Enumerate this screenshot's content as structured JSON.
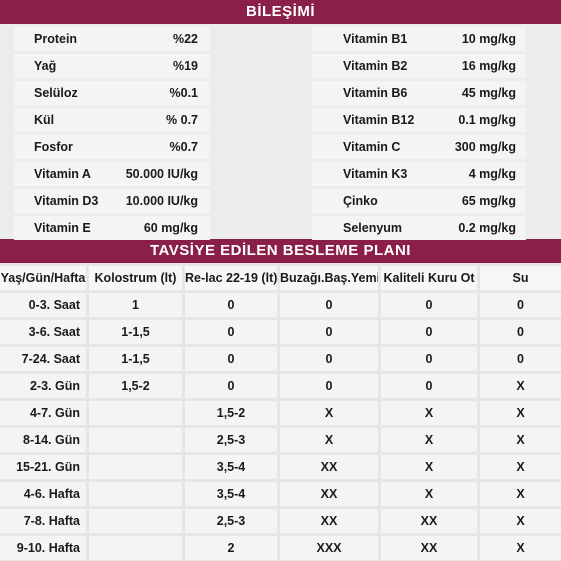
{
  "composition": {
    "title": "BİLEŞİMİ",
    "left": [
      {
        "name": "Protein",
        "value": "%22"
      },
      {
        "name": "Yağ",
        "value": "%19"
      },
      {
        "name": "Selüloz",
        "value": "%0.1"
      },
      {
        "name": "Kül",
        "value": "% 0.7"
      },
      {
        "name": "Fosfor",
        "value": "%0.7"
      },
      {
        "name": "Vitamin A",
        "value": "50.000 IU/kg"
      },
      {
        "name": "Vitamin D3",
        "value": "10.000 IU/kg"
      },
      {
        "name": "Vitamin E",
        "value": "60 mg/kg"
      }
    ],
    "right": [
      {
        "name": "Vitamin B1",
        "value": "10 mg/kg"
      },
      {
        "name": "Vitamin B2",
        "value": "16 mg/kg"
      },
      {
        "name": "Vitamin B6",
        "value": "45 mg/kg"
      },
      {
        "name": "Vitamin B12",
        "value": "0.1 mg/kg"
      },
      {
        "name": "Vitamin C",
        "value": "300 mg/kg"
      },
      {
        "name": "Vitamin K3",
        "value": "4 mg/kg"
      },
      {
        "name": "Çinko",
        "value": "65 mg/kg"
      },
      {
        "name": "Selenyum",
        "value": "0.2 mg/kg"
      }
    ]
  },
  "plan": {
    "title": "TAVSİYE EDİLEN BESLEME PLANI",
    "headers": [
      "Yaş/Gün/Hafta",
      "Kolostrum (lt)",
      "Re-lac 22-19 (lt)",
      "Buzağı.Baş.Yemi",
      "Kaliteli Kuru Ot",
      "Su"
    ],
    "rows": [
      [
        "0-3. Saat",
        "1",
        "0",
        "0",
        "0",
        "0"
      ],
      [
        "3-6. Saat",
        "1-1,5",
        "0",
        "0",
        "0",
        "0"
      ],
      [
        "7-24. Saat",
        "1-1,5",
        "0",
        "0",
        "0",
        "0"
      ],
      [
        "2-3. Gün",
        "1,5-2",
        "0",
        "0",
        "0",
        "X"
      ],
      [
        "4-7. Gün",
        "",
        "1,5-2",
        "X",
        "X",
        "X"
      ],
      [
        "8-14. Gün",
        "",
        "2,5-3",
        "X",
        "X",
        "X"
      ],
      [
        "15-21. Gün",
        "",
        "3,5-4",
        "XX",
        "X",
        "X"
      ],
      [
        "4-6. Hafta",
        "",
        "3,5-4",
        "XX",
        "X",
        "X"
      ],
      [
        "7-8. Hafta",
        "",
        "2,5-3",
        "XX",
        "XX",
        "X"
      ],
      [
        "9-10. Hafta",
        "",
        "2",
        "XXX",
        "XX",
        "X"
      ]
    ]
  },
  "colors": {
    "accent": "#8a1f47"
  }
}
